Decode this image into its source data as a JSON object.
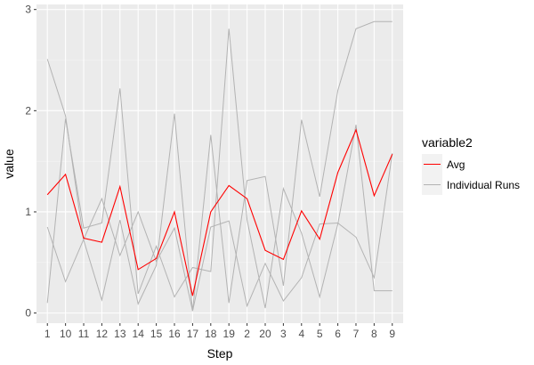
{
  "chart_data": {
    "type": "line",
    "xlabel": "Step",
    "ylabel": "value",
    "categories": [
      "1",
      "10",
      "11",
      "12",
      "13",
      "14",
      "15",
      "16",
      "17",
      "18",
      "19",
      "2",
      "20",
      "3",
      "4",
      "5",
      "6",
      "7",
      "8",
      "9"
    ],
    "ylim": [
      -0.1,
      3.05
    ],
    "yticks": [
      0,
      1,
      2,
      3
    ],
    "grid": true,
    "legend": {
      "title": "variable2",
      "placement": "right",
      "entries": [
        "Avg",
        "Individual Runs"
      ]
    },
    "series": [
      {
        "name": "Avg",
        "color": "#ff0000",
        "values": [
          1.17,
          1.37,
          0.74,
          0.7,
          1.25,
          0.43,
          0.54,
          1.0,
          0.17,
          1.0,
          1.26,
          1.13,
          0.62,
          0.53,
          1.01,
          0.73,
          1.39,
          1.81,
          1.16,
          1.57
        ]
      },
      {
        "name": "Individual Runs",
        "color": "#b3b3b3",
        "runs": [
          [
            2.51,
            1.95,
            0.72,
            0.13,
            0.92,
            0.09,
            0.47,
            1.97,
            0.02,
            1.76,
            0.1,
            1.31,
            1.35,
            0.27,
            1.91,
            1.15,
            2.2,
            2.81,
            2.88,
            2.88
          ],
          [
            0.1,
            1.92,
            0.84,
            0.89,
            2.22,
            0.19,
            0.66,
            0.16,
            0.45,
            0.41,
            2.81,
            0.92,
            0.05,
            1.23,
            0.79,
            0.16,
            0.88,
            1.86,
            0.22,
            0.22
          ],
          [
            0.85,
            0.31,
            0.73,
            1.13,
            0.57,
            1.0,
            0.51,
            0.84,
            0.02,
            0.85,
            0.91,
            0.07,
            0.49,
            0.12,
            0.35,
            0.88,
            0.89,
            0.75,
            0.35,
            1.58
          ]
        ]
      }
    ]
  }
}
